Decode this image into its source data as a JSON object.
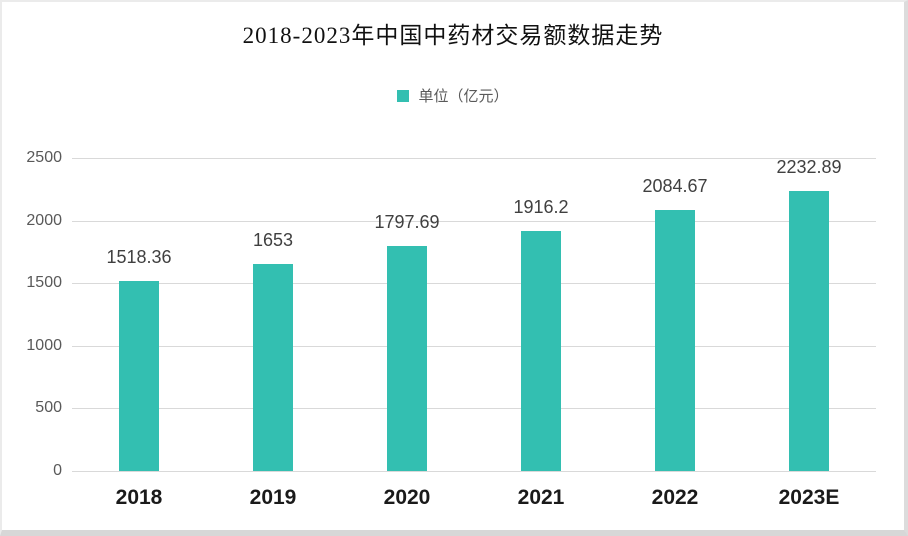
{
  "title": "2018-2023年中国中药材交易额数据走势",
  "legend": {
    "label": "单位（亿元）",
    "swatch_color": "#33bfb1"
  },
  "colors": {
    "bar": "#33bfb1",
    "gridline": "#d9d9d9",
    "y_tick_text": "#595959",
    "value_label_text": "#404040",
    "x_tick_text": "#1a1a1a",
    "background": "#ffffff",
    "frame_border": "#dcdcdc"
  },
  "chart_data": {
    "type": "bar",
    "title": "2018-2023年中国中药材交易额数据走势",
    "legend_entries": [
      "单位（亿元）"
    ],
    "legend_position": "top-center",
    "categories": [
      "2018",
      "2019",
      "2020",
      "2021",
      "2022",
      "2023E"
    ],
    "values": [
      1518.36,
      1653,
      1797.69,
      1916.2,
      2084.67,
      2232.89
    ],
    "value_labels": [
      "1518.36",
      "1653",
      "1797.69",
      "1916.2",
      "2084.67",
      "2232.89"
    ],
    "xlabel": "",
    "ylabel": "",
    "ylim": [
      0,
      2500
    ],
    "yticks": [
      0,
      500,
      1000,
      1500,
      2000,
      2500
    ],
    "grid": true,
    "bar_color": "#33bfb1"
  }
}
